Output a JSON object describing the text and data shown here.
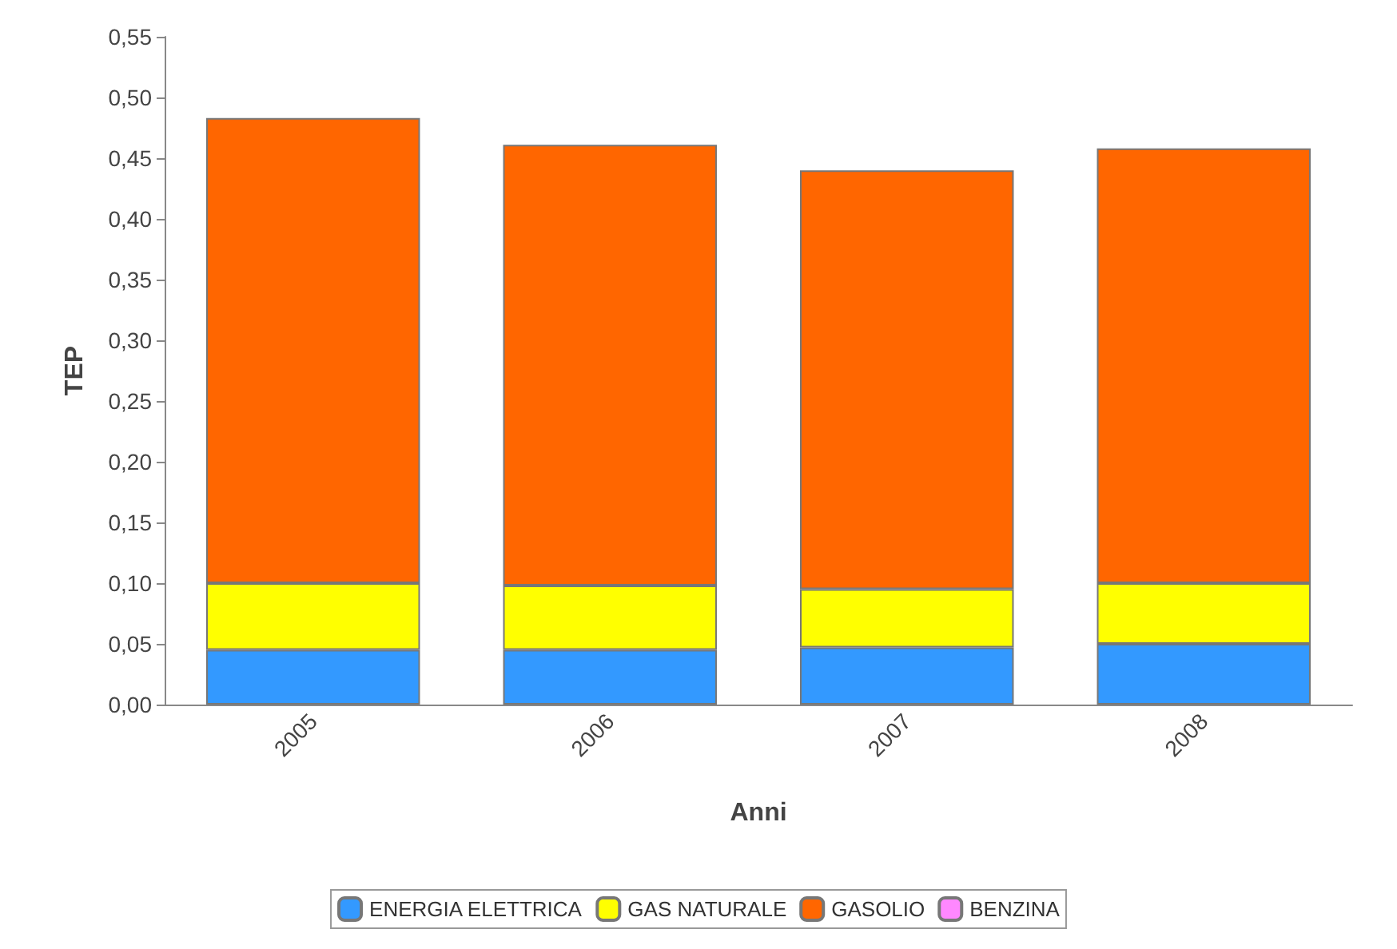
{
  "chart_data": {
    "type": "bar",
    "stacked": true,
    "xlabel": "Anni",
    "ylabel": "TEP",
    "categories": [
      "2005",
      "2006",
      "2007",
      "2008"
    ],
    "series": [
      {
        "name": "ENERGIA ELETTRICA",
        "color": "#3399ff",
        "values": [
          0.045,
          0.045,
          0.047,
          0.05
        ]
      },
      {
        "name": "GAS NATURALE",
        "color": "#ffff00",
        "values": [
          0.055,
          0.053,
          0.048,
          0.05
        ]
      },
      {
        "name": "GASOLIO",
        "color": "#ff6600",
        "values": [
          0.383,
          0.363,
          0.345,
          0.358
        ]
      },
      {
        "name": "BENZINA",
        "color": "#ff88ff",
        "values": [
          0,
          0,
          0,
          0
        ]
      }
    ],
    "ylim": [
      0,
      0.55
    ],
    "yticks": [
      {
        "value": 0,
        "label": "0,00"
      },
      {
        "value": 0.05,
        "label": "0,05"
      },
      {
        "value": 0.1,
        "label": "0,10"
      },
      {
        "value": 0.15,
        "label": "0,15"
      },
      {
        "value": 0.2,
        "label": "0,20"
      },
      {
        "value": 0.25,
        "label": "0,25"
      },
      {
        "value": 0.3,
        "label": "0,30"
      },
      {
        "value": 0.35,
        "label": "0,35"
      },
      {
        "value": 0.4,
        "label": "0,40"
      },
      {
        "value": 0.45,
        "label": "0,45"
      },
      {
        "value": 0.5,
        "label": "0,50"
      },
      {
        "value": 0.55,
        "label": "0,55"
      }
    ],
    "grid": false,
    "legend": "bottom"
  }
}
